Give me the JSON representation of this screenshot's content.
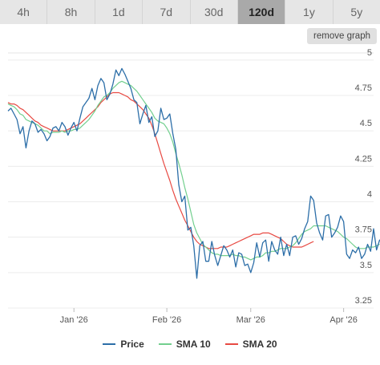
{
  "tabs": [
    {
      "label": "4h",
      "active": false
    },
    {
      "label": "8h",
      "active": false
    },
    {
      "label": "1d",
      "active": false
    },
    {
      "label": "7d",
      "active": false
    },
    {
      "label": "30d",
      "active": false
    },
    {
      "label": "120d",
      "active": true
    },
    {
      "label": "1y",
      "active": false
    },
    {
      "label": "5y",
      "active": false
    }
  ],
  "remove_graph_label": "remove graph",
  "chart_data": {
    "type": "line",
    "xlabel": "",
    "ylabel": "",
    "ylim": [
      3.25,
      5.05
    ],
    "yticks": [
      3.25,
      3.5,
      3.75,
      4,
      4.25,
      4.5,
      4.75,
      5
    ],
    "ytick_labels": [
      "3.25",
      "3.5",
      "3.75",
      "4",
      "4.25",
      "4.5",
      "4.75",
      "5"
    ],
    "xlim": [
      0,
      122
    ],
    "xticks": [
      {
        "pos": 22,
        "label": "Jan '26"
      },
      {
        "pos": 53,
        "label": "Feb '26"
      },
      {
        "pos": 81,
        "label": "Mar '26"
      },
      {
        "pos": 112,
        "label": "Apr '26"
      }
    ],
    "grid": true,
    "legend_position": "bottom",
    "colors": {
      "Price": "#2c6ea8",
      "SMA 10": "#72cf8e",
      "SMA 20": "#e84a43"
    },
    "series": [
      {
        "name": "Price",
        "values": [
          4.64,
          4.66,
          4.62,
          4.58,
          4.48,
          4.53,
          4.38,
          4.5,
          4.57,
          4.55,
          4.49,
          4.51,
          4.48,
          4.43,
          4.46,
          4.52,
          4.53,
          4.5,
          4.56,
          4.53,
          4.47,
          4.52,
          4.56,
          4.5,
          4.59,
          4.67,
          4.7,
          4.73,
          4.8,
          4.72,
          4.82,
          4.87,
          4.84,
          4.72,
          4.76,
          4.83,
          4.93,
          4.89,
          4.94,
          4.9,
          4.85,
          4.8,
          4.72,
          4.7,
          4.55,
          4.62,
          4.68,
          4.56,
          4.6,
          4.46,
          4.5,
          4.66,
          4.58,
          4.59,
          4.62,
          4.48,
          4.37,
          4.12,
          4.0,
          4.04,
          3.8,
          3.82,
          3.69,
          3.46,
          3.69,
          3.72,
          3.58,
          3.58,
          3.72,
          3.62,
          3.55,
          3.62,
          3.69,
          3.66,
          3.61,
          3.66,
          3.54,
          3.64,
          3.63,
          3.55,
          3.56,
          3.5,
          3.57,
          3.71,
          3.61,
          3.71,
          3.73,
          3.58,
          3.72,
          3.66,
          3.63,
          3.75,
          3.62,
          3.7,
          3.62,
          3.75,
          3.76,
          3.7,
          3.74,
          3.81,
          3.86,
          4.04,
          4.01,
          3.85,
          3.78,
          3.73,
          3.9,
          3.91,
          3.75,
          3.78,
          3.82,
          3.9,
          3.86,
          3.63,
          3.6,
          3.66,
          3.64,
          3.68,
          3.6,
          3.63,
          3.7,
          3.65,
          3.81,
          3.66,
          3.73,
          3.71,
          3.82
        ]
      },
      {
        "name": "SMA 10",
        "values": [
          4.69,
          4.68,
          4.67,
          4.65,
          4.62,
          4.61,
          4.58,
          4.57,
          4.56,
          4.55,
          4.54,
          4.52,
          4.5,
          4.5,
          4.48,
          4.49,
          4.49,
          4.49,
          4.5,
          4.49,
          4.5,
          4.5,
          4.51,
          4.51,
          4.52,
          4.54,
          4.56,
          4.58,
          4.61,
          4.64,
          4.68,
          4.71,
          4.74,
          4.75,
          4.77,
          4.8,
          4.82,
          4.84,
          4.85,
          4.84,
          4.83,
          4.82,
          4.8,
          4.78,
          4.75,
          4.72,
          4.69,
          4.66,
          4.63,
          4.59,
          4.57,
          4.56,
          4.55,
          4.52,
          4.48,
          4.42,
          4.34,
          4.27,
          4.19,
          4.1,
          4.02,
          3.93,
          3.84,
          3.78,
          3.74,
          3.7,
          3.68,
          3.66,
          3.64,
          3.63,
          3.63,
          3.62,
          3.62,
          3.62,
          3.62,
          3.63,
          3.62,
          3.62,
          3.61,
          3.61,
          3.6,
          3.59,
          3.6,
          3.61,
          3.61,
          3.62,
          3.64,
          3.64,
          3.65,
          3.65,
          3.66,
          3.67,
          3.67,
          3.67,
          3.68,
          3.69,
          3.71,
          3.74,
          3.77,
          3.79,
          3.8,
          3.81,
          3.83,
          3.83,
          3.83,
          3.83,
          3.83,
          3.82,
          3.81,
          3.8,
          3.79,
          3.77,
          3.75,
          3.74,
          3.72,
          3.7,
          3.68,
          3.67,
          3.67,
          3.67,
          3.68,
          3.68,
          3.68,
          3.69,
          3.7
        ]
      },
      {
        "name": "SMA 20",
        "values": [
          4.7,
          4.69,
          4.69,
          4.68,
          4.66,
          4.65,
          4.63,
          4.61,
          4.59,
          4.57,
          4.56,
          4.54,
          4.53,
          4.52,
          4.51,
          4.5,
          4.5,
          4.5,
          4.5,
          4.5,
          4.51,
          4.52,
          4.53,
          4.54,
          4.55,
          4.57,
          4.59,
          4.61,
          4.63,
          4.65,
          4.67,
          4.7,
          4.72,
          4.74,
          4.76,
          4.77,
          4.77,
          4.77,
          4.76,
          4.75,
          4.74,
          4.72,
          4.71,
          4.69,
          4.67,
          4.65,
          4.62,
          4.59,
          4.54,
          4.48,
          4.41,
          4.34,
          4.27,
          4.21,
          4.15,
          4.08,
          4.02,
          3.97,
          3.92,
          3.87,
          3.83,
          3.79,
          3.75,
          3.72,
          3.7,
          3.69,
          3.68,
          3.67,
          3.67,
          3.67,
          3.67,
          3.68,
          3.68,
          3.68,
          3.69,
          3.7,
          3.71,
          3.72,
          3.73,
          3.74,
          3.75,
          3.76,
          3.77,
          3.77,
          3.77,
          3.78,
          3.78,
          3.78,
          3.77,
          3.76,
          3.75,
          3.74,
          3.72,
          3.7,
          3.69,
          3.68,
          3.68,
          3.68,
          3.68,
          3.69,
          3.7,
          3.71,
          3.72
        ]
      }
    ]
  }
}
